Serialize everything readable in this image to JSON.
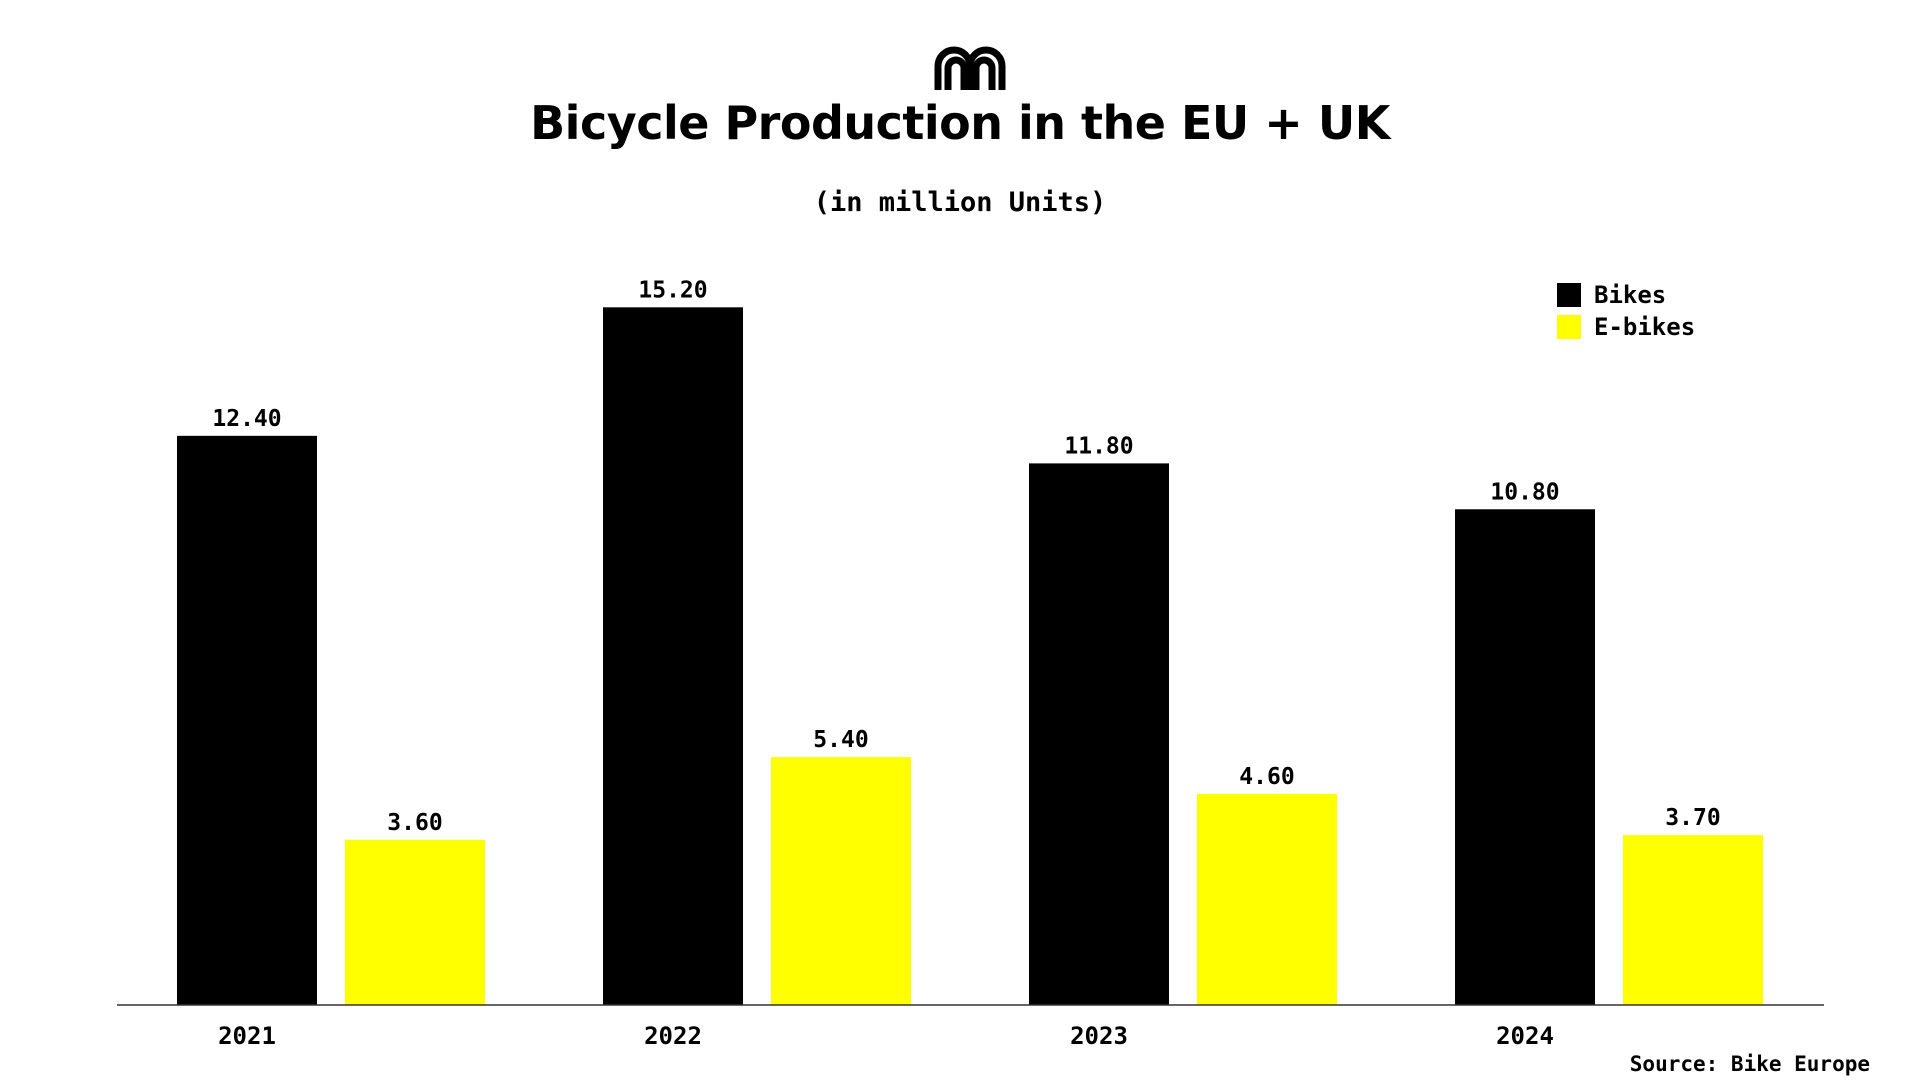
{
  "chart_data": {
    "type": "bar",
    "title": "Bicycle Production in the EU + UK",
    "subtitle": "(in million Units)",
    "categories": [
      "2021",
      "2022",
      "2023",
      "2024"
    ],
    "series": [
      {
        "name": "Bikes",
        "color": "#000000",
        "values": [
          12.4,
          15.2,
          11.8,
          10.8
        ],
        "labels": [
          "12.40",
          "15.20",
          "11.80",
          "10.80"
        ]
      },
      {
        "name": "E-bikes",
        "color": "#FFFF00",
        "values": [
          3.6,
          5.4,
          4.6,
          3.7
        ],
        "labels": [
          "3.60",
          "5.40",
          "4.60",
          "3.70"
        ]
      }
    ],
    "ylim": [
      0,
      16
    ],
    "grid": false,
    "legend_position": "top-right",
    "source": "Source: Bike Europe"
  }
}
